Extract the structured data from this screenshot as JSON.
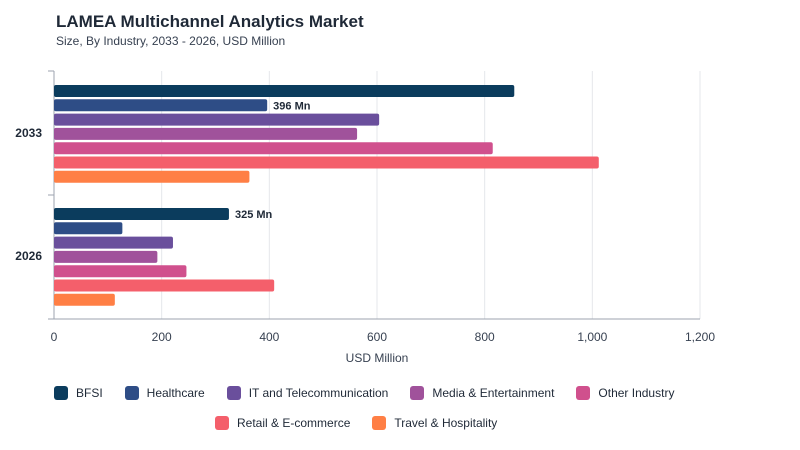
{
  "chart_data": {
    "type": "bar",
    "orientation": "horizontal",
    "title": "LAMEA Multichannel Analytics Market",
    "subtitle": "Size, By Industry, 2033 - 2026, USD Million",
    "xlabel": "USD Million",
    "ylabel": "",
    "xlim": [
      0,
      1200
    ],
    "xticks": [
      "0",
      "200",
      "400",
      "600",
      "800",
      "1,000",
      "1,200"
    ],
    "grid": true,
    "legend_position": "bottom",
    "categories": [
      "2033",
      "2026"
    ],
    "series": [
      {
        "name": "BFSI",
        "color": "#0b3c5d",
        "values": [
          855,
          325
        ],
        "labels": [
          "",
          "325 Mn"
        ]
      },
      {
        "name": "Healthcare",
        "color": "#2e4d86",
        "values": [
          396,
          127
        ],
        "labels": [
          "396 Mn",
          ""
        ]
      },
      {
        "name": "IT and Telecommunication",
        "color": "#6a4f9c",
        "values": [
          604,
          221
        ],
        "labels": [
          "",
          ""
        ]
      },
      {
        "name": "Media & Entertainment",
        "color": "#a0529b",
        "values": [
          563,
          192
        ],
        "labels": [
          "",
          ""
        ]
      },
      {
        "name": "Other Industry",
        "color": "#d0508d",
        "values": [
          815,
          246
        ],
        "labels": [
          "",
          ""
        ]
      },
      {
        "name": "Retail & E-commerce",
        "color": "#f45f6b",
        "values": [
          1012,
          409
        ],
        "labels": [
          "",
          ""
        ]
      },
      {
        "name": "Travel & Hospitality",
        "color": "#ff7f45",
        "values": [
          363,
          113
        ],
        "labels": [
          "",
          ""
        ]
      }
    ]
  }
}
